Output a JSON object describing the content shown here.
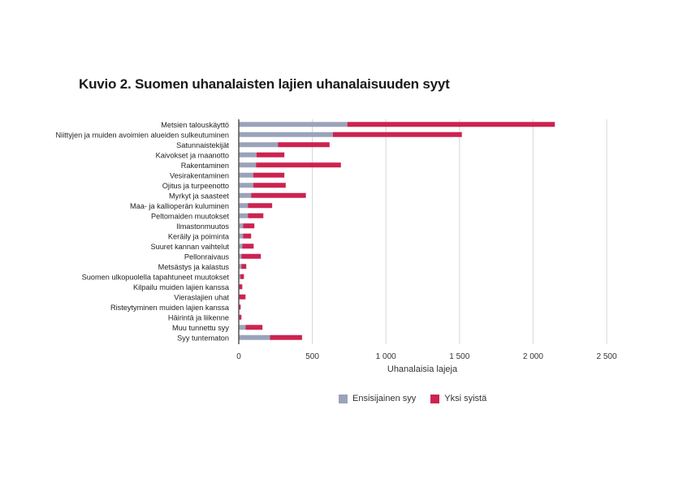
{
  "chart_data": {
    "type": "bar",
    "orientation": "horizontal",
    "stacked": true,
    "title": "Kuvio 2. Suomen uhanalaisten lajien uhanalaisuuden syyt",
    "xlabel": "Uhanalaisia lajeja",
    "ylabel": "",
    "xlim": [
      0,
      2500
    ],
    "xticks": [
      0,
      500,
      1000,
      1500,
      2000,
      2500
    ],
    "xtick_labels": [
      "0",
      "500",
      "1 000",
      "1 500",
      "2 000",
      "2 500"
    ],
    "grid": true,
    "legend_position": "bottom",
    "categories": [
      "Metsien talouskäyttö",
      "Niittyjen ja muiden avoimien alueiden sulkeutuminen",
      "Satunnaistekijät",
      "Kaivokset ja maanotto",
      "Rakentaminen",
      "Vesirakentaminen",
      "Ojitus ja turpeenotto",
      "Myrkyt ja saasteet",
      "Maa- ja kallioperän kuluminen",
      "Peltomaiden muutokset",
      "Ilmastonmuutos",
      "Keräily ja poiminta",
      "Suuret kannan vaihtelut",
      "Pellonraivaus",
      "Metsästys ja kalastus",
      "Suomen ulkopuolella tapahtuneet muutokset",
      "Kilpailu muiden lajien kanssa",
      "Vieraslajien uhat",
      "Risteytyminen muiden lajien kanssa",
      "Häirintä ja liikenne",
      "Muu tunnettu syy",
      "Syy tuntematon"
    ],
    "series": [
      {
        "name": "Ensisijainen syy",
        "color": "#9aa3bb",
        "values": [
          738,
          639,
          266,
          121,
          117,
          99,
          99,
          84,
          62,
          62,
          29,
          29,
          24,
          18,
          18,
          11,
          0,
          0,
          0,
          0,
          46,
          212
        ]
      },
      {
        "name": "Yksi syistä",
        "color": "#cc2350",
        "values": [
          1410,
          877,
          351,
          189,
          577,
          211,
          220,
          372,
          165,
          105,
          77,
          55,
          77,
          132,
          33,
          24,
          24,
          46,
          13,
          18,
          115,
          218
        ]
      }
    ]
  }
}
